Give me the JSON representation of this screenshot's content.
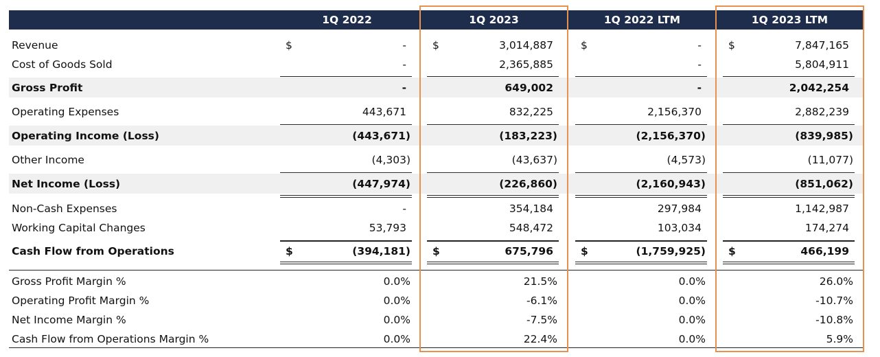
{
  "table": {
    "columns": [
      "1Q 2022",
      "1Q 2023",
      "1Q 2022 LTM",
      "1Q 2023 LTM"
    ],
    "currency": "$",
    "rows": [
      {
        "label": "Revenue",
        "cells": [
          "-",
          "3,014,887",
          "-",
          "7,847,165"
        ]
      },
      {
        "label": "Cost of Goods Sold",
        "cells": [
          "-",
          "2,365,885",
          "-",
          "5,804,911"
        ]
      },
      {
        "label": "Gross Profit",
        "cells": [
          "-",
          "649,002",
          "-",
          "2,042,254"
        ]
      },
      {
        "label": "Operating Expenses",
        "cells": [
          "443,671",
          "832,225",
          "2,156,370",
          "2,882,239"
        ]
      },
      {
        "label": "Operating Income (Loss)",
        "cells": [
          "(443,671)",
          "(183,223)",
          "(2,156,370)",
          "(839,985)"
        ]
      },
      {
        "label": "Other Income",
        "cells": [
          "(4,303)",
          "(43,637)",
          "(4,573)",
          "(11,077)"
        ]
      },
      {
        "label": "Net Income (Loss)",
        "cells": [
          "(447,974)",
          "(226,860)",
          "(2,160,943)",
          "(851,062)"
        ]
      },
      {
        "label": "Non-Cash Expenses",
        "cells": [
          "-",
          "354,184",
          "297,984",
          "1,142,987"
        ]
      },
      {
        "label": "Working Capital Changes",
        "cells": [
          "53,793",
          "548,472",
          "103,034",
          "174,274"
        ]
      },
      {
        "label": "Cash Flow from Operations",
        "cells": [
          "(394,181)",
          "675,796",
          "(1,759,925)",
          "466,199"
        ]
      },
      {
        "label": "Gross Profit Margin %",
        "cells": [
          "0.0%",
          "21.5%",
          "0.0%",
          "26.0%"
        ]
      },
      {
        "label": "Operating Profit Margin %",
        "cells": [
          "0.0%",
          "-6.1%",
          "0.0%",
          "-10.7%"
        ]
      },
      {
        "label": "Net Income Margin %",
        "cells": [
          "0.0%",
          "-7.5%",
          "0.0%",
          "-10.8%"
        ]
      },
      {
        "label": "Cash Flow from Operations Margin %",
        "cells": [
          "0.0%",
          "22.4%",
          "0.0%",
          "5.9%"
        ]
      }
    ]
  }
}
